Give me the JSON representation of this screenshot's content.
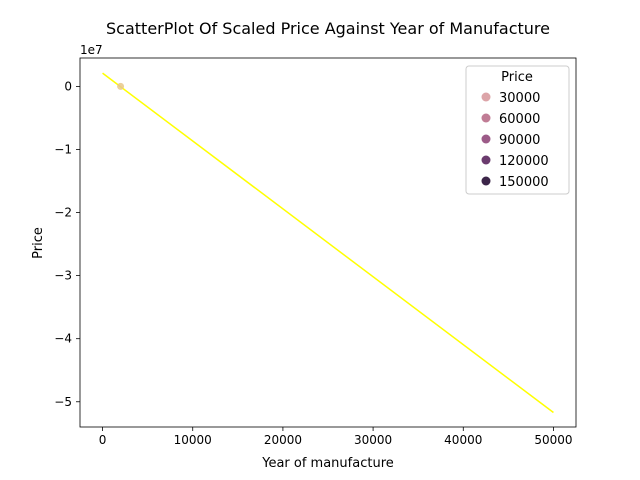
{
  "chart_data": {
    "type": "scatter",
    "title": "ScatterPlot Of Scaled Price Against Year of Manufacture",
    "xlabel": "Year of manufacture",
    "ylabel": "Price",
    "y_offset_label": "1e7",
    "xlim": [
      -2500,
      52500
    ],
    "ylim": [
      -5.4,
      0.45
    ],
    "x_ticks": [
      0,
      10000,
      20000,
      30000,
      40000,
      50000
    ],
    "x_tick_labels": [
      "0",
      "10000",
      "20000",
      "30000",
      "40000",
      "50000"
    ],
    "y_ticks": [
      0,
      -1,
      -2,
      -3,
      -4,
      -5
    ],
    "y_tick_labels": [
      "0",
      "−1",
      "−2",
      "−3",
      "−4",
      "−5"
    ],
    "grid": false,
    "points": [
      {
        "x": 2000,
        "y": 0.0,
        "color": "#e8c88c"
      }
    ],
    "regression_line": {
      "x": [
        0,
        50000
      ],
      "y": [
        0.21,
        -5.17
      ],
      "color": "#ffff00"
    },
    "legend": {
      "title": "Price",
      "placement": "top-right",
      "entries": [
        {
          "label": "30000",
          "color": "#dca4a8"
        },
        {
          "label": "60000",
          "color": "#c07c95"
        },
        {
          "label": "90000",
          "color": "#9c5b88"
        },
        {
          "label": "120000",
          "color": "#6b3b6e"
        },
        {
          "label": "150000",
          "color": "#3c2549"
        }
      ]
    }
  }
}
